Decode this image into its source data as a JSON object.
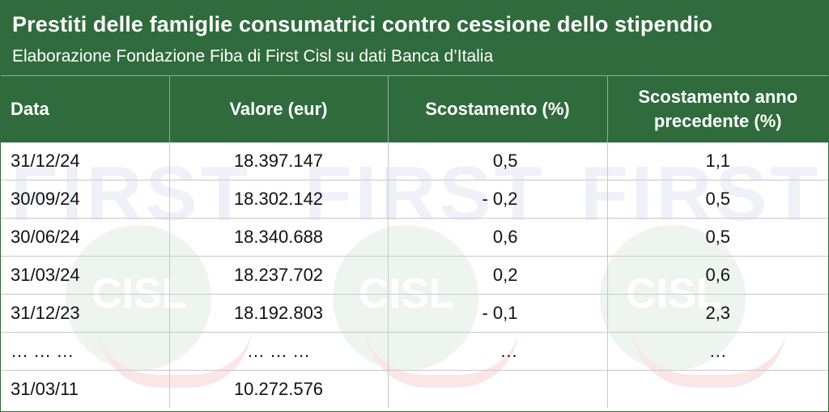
{
  "header": {
    "title": "Prestiti delle famiglie consumatrici contro cessione dello stipendio",
    "subtitle": "Elaborazione Fondazione Fiba di First Cisl su dati Banca d’Italia"
  },
  "watermark": {
    "first_text": "FIRST",
    "cisl_text": "CISL"
  },
  "colors": {
    "header_green": "#2f6b3c",
    "watermark_blue": "#eef2f8",
    "watermark_green": "#edf5ee",
    "watermark_red": "#fbe6e6"
  },
  "chart_data": {
    "type": "table",
    "title": "Prestiti delle famiglie consumatrici contro cessione dello stipendio",
    "subtitle": "Elaborazione Fondazione Fiba di First Cisl su dati Banca d’Italia",
    "columns": [
      "Data",
      "Valore (eur)",
      "Scostamento (%)",
      "Scostamento anno precedente (%)"
    ],
    "rows": [
      [
        "31/12/24",
        "18.397.147",
        "0,5",
        "1,1"
      ],
      [
        "30/09/24",
        "18.302.142",
        "- 0,2",
        "0,5"
      ],
      [
        "30/06/24",
        "18.340.688",
        "0,6",
        "0,5"
      ],
      [
        "31/03/24",
        "18.237.702",
        "0,2",
        "0,6"
      ],
      [
        "31/12/23",
        "18.192.803",
        "- 0,1",
        "2,3"
      ],
      [
        "… … …",
        "… … …",
        "…",
        "…"
      ],
      [
        "31/03/11",
        "10.272.576",
        "",
        ""
      ]
    ]
  }
}
